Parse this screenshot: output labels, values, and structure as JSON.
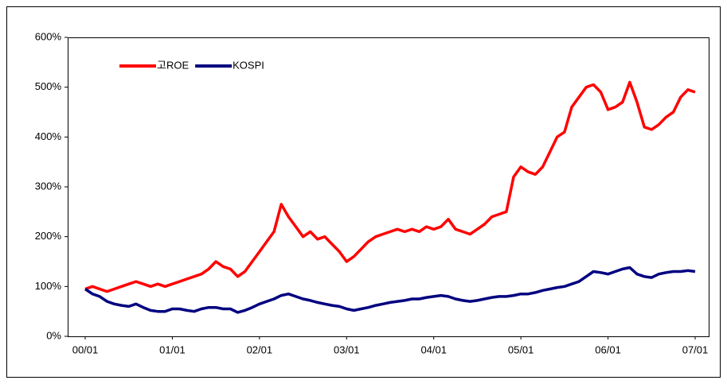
{
  "chart_data": {
    "type": "line",
    "categories": [
      "00/01",
      null,
      null,
      null,
      null,
      null,
      null,
      null,
      null,
      null,
      null,
      null,
      "01/01",
      null,
      null,
      null,
      null,
      null,
      null,
      null,
      null,
      null,
      null,
      null,
      "02/01",
      null,
      null,
      null,
      null,
      null,
      null,
      null,
      null,
      null,
      null,
      null,
      "03/01",
      null,
      null,
      null,
      null,
      null,
      null,
      null,
      null,
      null,
      null,
      null,
      "04/01",
      null,
      null,
      null,
      null,
      null,
      null,
      null,
      null,
      null,
      null,
      null,
      "05/01",
      null,
      null,
      null,
      null,
      null,
      null,
      null,
      null,
      null,
      null,
      null,
      "06/01",
      null,
      null,
      null,
      null,
      null,
      null,
      null,
      null,
      null,
      null,
      null,
      "07/01"
    ],
    "series": [
      {
        "name": "고ROE",
        "color": "#ff0000",
        "values": [
          95,
          100,
          95,
          90,
          95,
          100,
          105,
          110,
          105,
          100,
          105,
          100,
          105,
          110,
          115,
          120,
          125,
          135,
          150,
          140,
          135,
          120,
          130,
          150,
          170,
          190,
          210,
          265,
          240,
          220,
          200,
          210,
          195,
          200,
          185,
          170,
          150,
          160,
          175,
          190,
          200,
          205,
          210,
          215,
          210,
          215,
          210,
          220,
          215,
          220,
          235,
          215,
          210,
          205,
          215,
          225,
          240,
          245,
          250,
          320,
          340,
          330,
          325,
          340,
          370,
          400,
          410,
          460,
          480,
          500,
          505,
          490,
          455,
          460,
          470,
          510,
          470,
          420,
          415,
          425,
          440,
          450,
          480,
          495,
          490
        ]
      },
      {
        "name": "KOSPI",
        "color": "#000080",
        "values": [
          95,
          85,
          80,
          70,
          65,
          62,
          60,
          65,
          58,
          52,
          50,
          50,
          55,
          55,
          52,
          50,
          55,
          58,
          58,
          55,
          55,
          48,
          52,
          58,
          65,
          70,
          75,
          82,
          85,
          80,
          75,
          72,
          68,
          65,
          62,
          60,
          55,
          52,
          55,
          58,
          62,
          65,
          68,
          70,
          72,
          75,
          75,
          78,
          80,
          82,
          80,
          75,
          72,
          70,
          72,
          75,
          78,
          80,
          80,
          82,
          85,
          85,
          88,
          92,
          95,
          98,
          100,
          105,
          110,
          120,
          130,
          128,
          125,
          130,
          135,
          138,
          125,
          120,
          118,
          125,
          128,
          130,
          130,
          132,
          130
        ]
      }
    ],
    "ylim": [
      0,
      600
    ],
    "yticks": [
      {
        "value": 0,
        "label": "0%"
      },
      {
        "value": 100,
        "label": "100%"
      },
      {
        "value": 200,
        "label": "200%"
      },
      {
        "value": 300,
        "label": "300%"
      },
      {
        "value": 400,
        "label": "400%"
      },
      {
        "value": 500,
        "label": "500%"
      },
      {
        "value": 600,
        "label": "600%"
      }
    ],
    "grid": false,
    "legend": "top-left"
  }
}
